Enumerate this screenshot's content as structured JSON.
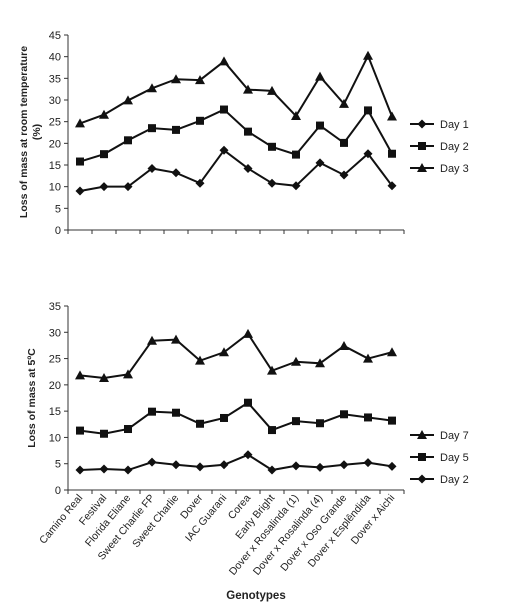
{
  "chart_data": [
    {
      "type": "line",
      "ylabel": "Loss of mass at room temperature (%)",
      "ylim": [
        0,
        45
      ],
      "yticks": [
        0,
        5,
        10,
        15,
        20,
        25,
        30,
        35,
        40,
        45
      ],
      "legend": "right",
      "series": [
        {
          "name": "Day 1",
          "marker": "diamond",
          "values": [
            9,
            10,
            10,
            14.2,
            13.2,
            10.8,
            18.4,
            14.2,
            10.8,
            10.2,
            15.5,
            12.7,
            17.6,
            10.2
          ]
        },
        {
          "name": "Day 2",
          "marker": "square",
          "values": [
            15.8,
            17.5,
            20.7,
            23.5,
            23.1,
            25.2,
            27.8,
            22.7,
            19.2,
            17.4,
            24.1,
            20.1,
            27.6,
            17.6
          ]
        },
        {
          "name": "Day 3",
          "marker": "triangle",
          "values": [
            24.6,
            26.6,
            29.9,
            32.7,
            34.8,
            34.6,
            38.9,
            32.4,
            32.1,
            26.3,
            35.4,
            29.1,
            40.2,
            26.2
          ]
        }
      ]
    },
    {
      "type": "line",
      "ylabel": "Loss of mass at 5ºC",
      "ylim": [
        0,
        35
      ],
      "yticks": [
        0,
        5,
        10,
        15,
        20,
        25,
        30,
        35
      ],
      "legend": "right",
      "series": [
        {
          "name": "Day 7",
          "marker": "triangle",
          "values": [
            21.8,
            21.3,
            22,
            28.4,
            28.6,
            24.6,
            26.2,
            29.7,
            22.7,
            24.4,
            24.1,
            27.4,
            25,
            26.2
          ]
        },
        {
          "name": "Day 5",
          "marker": "square",
          "values": [
            11.3,
            10.7,
            11.6,
            14.9,
            14.7,
            12.6,
            13.7,
            16.6,
            11.4,
            13.1,
            12.7,
            14.4,
            13.8,
            13.2
          ]
        },
        {
          "name": "Day 2",
          "marker": "diamond",
          "values": [
            3.8,
            4,
            3.8,
            5.3,
            4.8,
            4.4,
            4.8,
            6.7,
            3.8,
            4.6,
            4.3,
            4.8,
            5.2,
            4.5
          ]
        }
      ]
    }
  ],
  "categories": [
    "Camino Real",
    "Festival",
    "Florida Eliane",
    "Sweet Charlie FP",
    "Sweet Charlie",
    "Dover",
    "IAC Guarani",
    "Corea",
    "Early Bright",
    "Dover x Rosalinda (1)",
    "Dover x Rosalinda (4)",
    "Dover x Oso Grande",
    "Dover x Esplêndida",
    "Dover x Aichi"
  ],
  "xlabel": "Genotypes",
  "colors": {
    "line": "#111111",
    "axis": "#333333",
    "text": "#222222"
  }
}
